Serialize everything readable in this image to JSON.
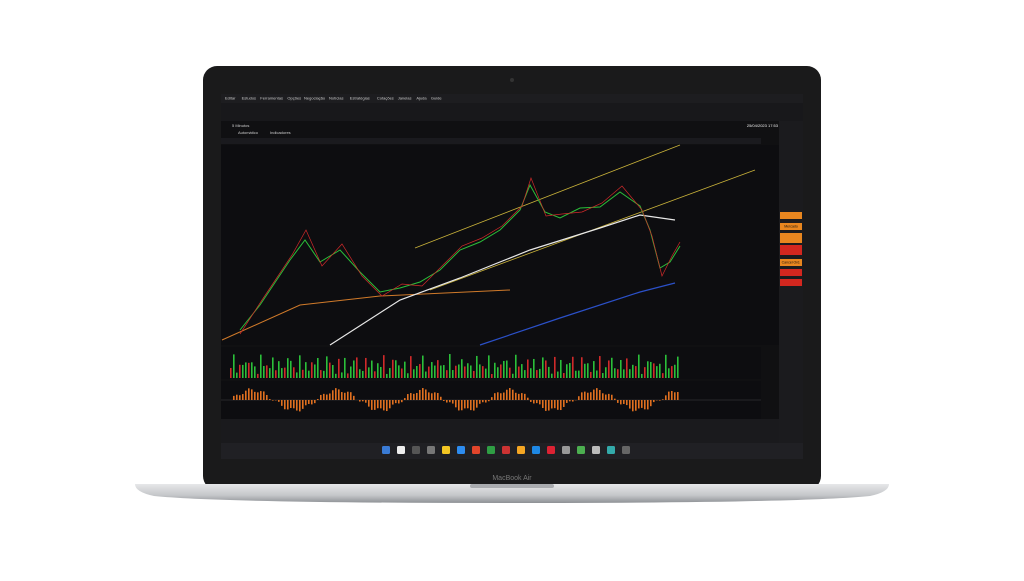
{
  "menu": [
    "Editar",
    "Estudos",
    "Ferramentas",
    "Opções",
    "Negociação",
    "Notícias",
    "Estratégias",
    "Cotações",
    "Janelas",
    "Ajuda",
    "Guide"
  ],
  "toolbar": {
    "timeframe": "5 Minutos",
    "indicators": "Indicadores",
    "scale": "Automático"
  },
  "datetime": "25/04/2023 17:53",
  "side_panel": {
    "market": "Mercado",
    "cancel": "Cancel Ord."
  },
  "laptop_label": "MacBook Air"
}
